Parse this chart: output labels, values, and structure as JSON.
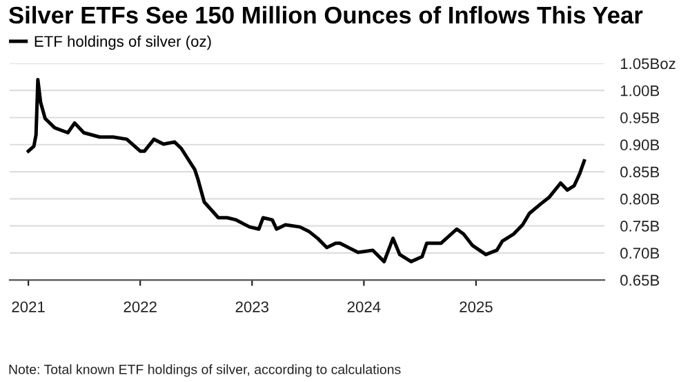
{
  "chart_data": {
    "type": "line",
    "title": "Silver ETFs See 150 Million Ounces of Inflows This Year",
    "x": [
      "2021-01-01",
      "2021-01-19",
      "2021-01-26",
      "2021-02-01",
      "2021-02-10",
      "2021-02-25",
      "2021-03-28",
      "2021-05-10",
      "2021-06-01",
      "2021-07-01",
      "2021-08-22",
      "2021-10-05",
      "2021-11-18",
      "2022-01-01",
      "2022-01-15",
      "2022-02-15",
      "2022-03-18",
      "2022-04-23",
      "2022-05-15",
      "2022-06-28",
      "2022-07-08",
      "2022-07-29",
      "2022-09-13",
      "2022-10-12",
      "2022-11-10",
      "2022-12-24",
      "2023-01-23",
      "2023-02-06",
      "2023-03-08",
      "2023-03-22",
      "2023-04-20",
      "2023-06-06",
      "2023-07-05",
      "2023-08-03",
      "2023-09-02",
      "2023-10-01",
      "2023-10-15",
      "2023-12-13",
      "2024-01-30",
      "2024-03-07",
      "2024-04-05",
      "2024-04-27",
      "2024-06-03",
      "2024-07-09",
      "2024-07-24",
      "2024-09-09",
      "2024-10-30",
      "2024-11-21",
      "2024-12-20",
      "2025-02-02",
      "2025-03-10",
      "2025-03-28",
      "2025-05-04",
      "2025-06-02",
      "2025-06-24",
      "2025-07-30",
      "2025-08-28",
      "2025-10-04",
      "2025-10-26",
      "2025-11-17",
      "2025-12-05",
      "2025-12-20"
    ],
    "series": [
      {
        "name": "ETF holdings of silver (oz)",
        "color": "#000000",
        "values": [
          0.888,
          0.897,
          0.918,
          1.02,
          0.978,
          0.948,
          0.931,
          0.922,
          0.94,
          0.922,
          0.914,
          0.914,
          0.91,
          0.888,
          0.888,
          0.91,
          0.901,
          0.905,
          0.893,
          0.854,
          0.837,
          0.794,
          0.765,
          0.765,
          0.761,
          0.748,
          0.744,
          0.765,
          0.761,
          0.744,
          0.752,
          0.748,
          0.74,
          0.727,
          0.71,
          0.718,
          0.718,
          0.701,
          0.705,
          0.684,
          0.727,
          0.697,
          0.684,
          0.693,
          0.718,
          0.718,
          0.744,
          0.735,
          0.714,
          0.697,
          0.705,
          0.722,
          0.735,
          0.752,
          0.773,
          0.79,
          0.803,
          0.829,
          0.816,
          0.824,
          0.846,
          0.87
        ]
      }
    ],
    "xlim": [
      "2020-11-01",
      "2026-02-24"
    ],
    "xticks": [
      "2021",
      "2022",
      "2023",
      "2024",
      "2025"
    ],
    "ylim": [
      0.65,
      1.05
    ],
    "yticks": [
      {
        "value": 0.65,
        "label": "0.65B"
      },
      {
        "value": 0.7,
        "label": "0.70B"
      },
      {
        "value": 0.75,
        "label": "0.75B"
      },
      {
        "value": 0.8,
        "label": "0.80B"
      },
      {
        "value": 0.85,
        "label": "0.85B"
      },
      {
        "value": 0.9,
        "label": "0.90B"
      },
      {
        "value": 0.95,
        "label": "0.95B"
      },
      {
        "value": 1.0,
        "label": "1.00B"
      },
      {
        "value": 1.05,
        "label": "1.05Boz"
      }
    ],
    "grid": "y",
    "legend": "top left",
    "line_style": "solid",
    "marker": "none",
    "annotations": [
      "Note: Total known ETF holdings of silver, according to calculations"
    ]
  }
}
